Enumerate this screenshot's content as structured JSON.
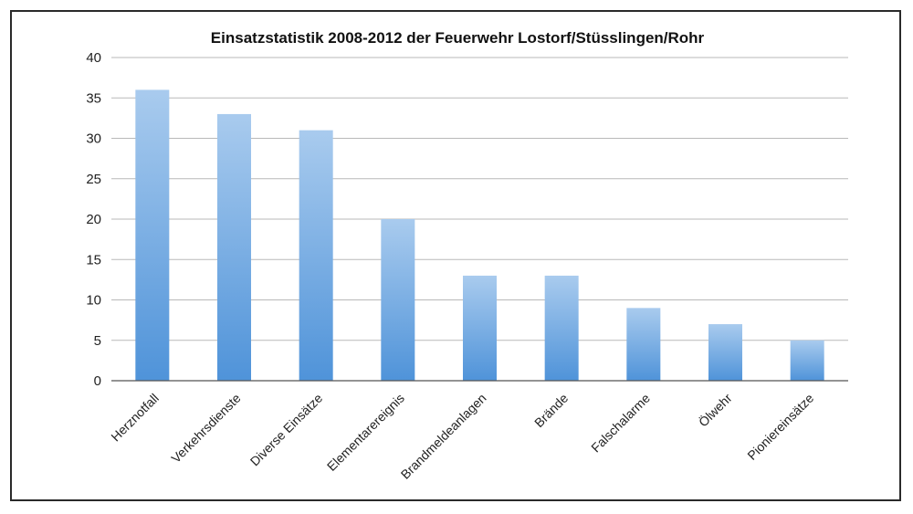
{
  "chart_data": {
    "type": "bar",
    "title": "Einsatzstatistik 2008-2012 der Feuerwehr Lostorf/Stüsslingen/Rohr",
    "xlabel": "",
    "ylabel": "",
    "categories": [
      "Herznotfall",
      "Verkehrsdienste",
      "Diverse Einsätze",
      "Elementarereignis",
      "Brandmeldeanlagen",
      "Brände",
      "Falschalarme",
      "Ölwehr",
      "Pioniereinsätze"
    ],
    "values": [
      36,
      33,
      31,
      20,
      13,
      13,
      9,
      7,
      5
    ],
    "ylim": [
      0,
      40
    ],
    "yticks": [
      "0",
      "5",
      "10",
      "15",
      "20",
      "25",
      "30",
      "35",
      "40"
    ],
    "grid": true,
    "legend": "none",
    "colors": {
      "bar_top": "#a9cbee",
      "bar_bottom": "#4f93d9",
      "grid": "#b9b9b9"
    }
  }
}
